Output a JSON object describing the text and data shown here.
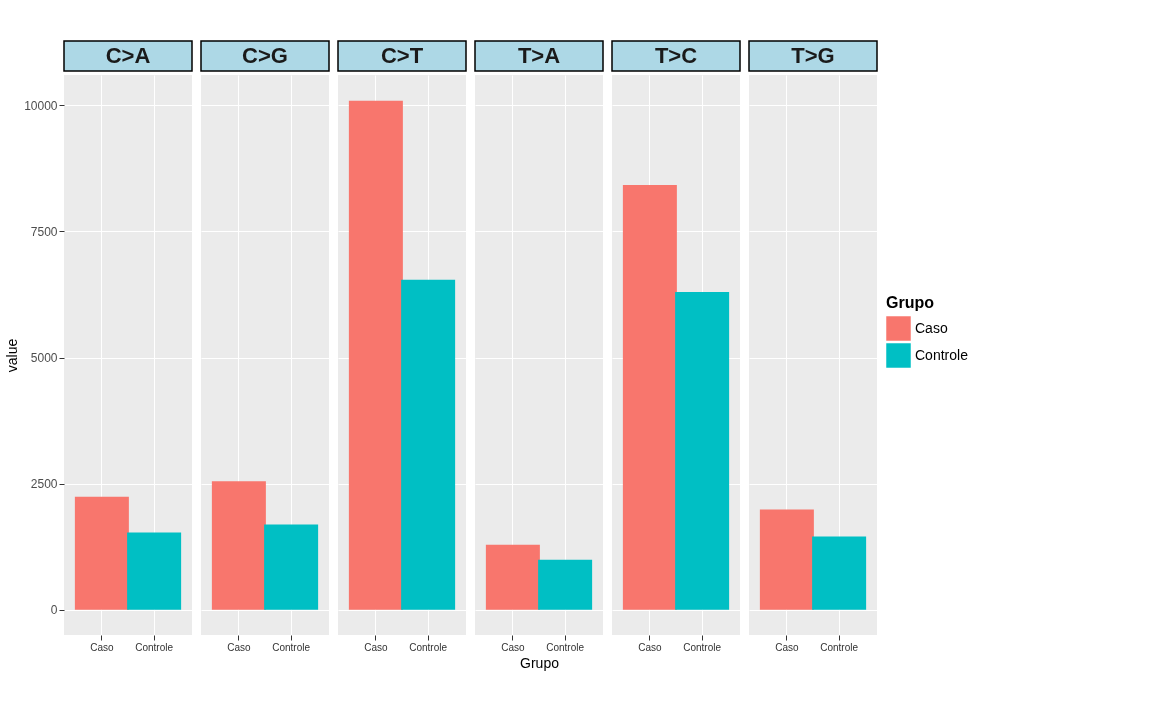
{
  "chart_data": [
    {
      "type": "bar",
      "title": "C>A",
      "categories": [
        "Caso",
        "Controle"
      ],
      "series": [
        {
          "name": "Caso",
          "color": "#f8766d",
          "values": [
            2240,
            null
          ]
        },
        {
          "name": "Controle",
          "color": "#00bfc4",
          "values": [
            null,
            1530
          ]
        }
      ],
      "ylabel": "value",
      "ylim": [
        -500,
        10600
      ],
      "yticks": [
        0,
        2500,
        5000,
        7500,
        10000
      ],
      "grid": true,
      "legend": "right",
      "legend_title": "Grupo"
    },
    {
      "type": "bar",
      "title": "C>G",
      "categories": [
        "Caso",
        "Controle"
      ],
      "series": [
        {
          "name": "Caso",
          "color": "#f8766d",
          "values": [
            2550,
            null
          ]
        },
        {
          "name": "Controle",
          "color": "#00bfc4",
          "values": [
            null,
            1690
          ]
        }
      ],
      "ylim": [
        -500,
        10600
      ],
      "yticks": [
        0,
        2500,
        5000,
        7500,
        10000
      ],
      "grid": true,
      "legend": "right",
      "tick_labels": "x"
    },
    {
      "type": "bar",
      "title": "C>T",
      "categories": [
        "Caso",
        "Controle"
      ],
      "series": [
        {
          "name": "Caso",
          "color": "#f8766d",
          "values": [
            10090,
            null
          ]
        },
        {
          "name": "Controle",
          "color": "#00bfc4",
          "values": [
            null,
            6540
          ]
        }
      ],
      "ylim": [
        -500,
        10600
      ],
      "yticks": [
        0,
        2500,
        5000,
        7500,
        10000
      ],
      "grid": true,
      "legend": "right",
      "tick_labels": "x"
    },
    {
      "type": "bar",
      "title": "T>A",
      "categories": [
        "Caso",
        "Controle"
      ],
      "series": [
        {
          "name": "Caso",
          "color": "#f8766d",
          "values": [
            1290,
            null
          ]
        },
        {
          "name": "Controle",
          "color": "#00bfc4",
          "values": [
            null,
            990
          ]
        }
      ],
      "xlabel": "Grupo",
      "ylim": [
        -500,
        10600
      ],
      "yticks": [
        0,
        2500,
        5000,
        7500,
        10000
      ],
      "grid": true,
      "legend": "right",
      "tick_labels": "x"
    },
    {
      "type": "bar",
      "title": "T>C",
      "categories": [
        "Caso",
        "Controle"
      ],
      "series": [
        {
          "name": "Caso",
          "color": "#f8766d",
          "values": [
            8420,
            null
          ]
        },
        {
          "name": "Controle",
          "color": "#00bfc4",
          "values": [
            null,
            6300
          ]
        }
      ],
      "ylim": [
        -500,
        10600
      ],
      "yticks": [
        0,
        2500,
        5000,
        7500,
        10000
      ],
      "grid": true,
      "legend": "right",
      "tick_labels": "x"
    },
    {
      "type": "bar",
      "title": "T>G",
      "categories": [
        "Caso",
        "Controle"
      ],
      "series": [
        {
          "name": "Caso",
          "color": "#f8766d",
          "values": [
            1990,
            null
          ]
        },
        {
          "name": "Controle",
          "color": "#00bfc4",
          "values": [
            null,
            1450
          ]
        }
      ],
      "ylim": [
        -500,
        10600
      ],
      "yticks": [
        0,
        2500,
        5000,
        7500,
        10000
      ],
      "grid": true,
      "legend": "right",
      "tick_labels": "x"
    }
  ]
}
